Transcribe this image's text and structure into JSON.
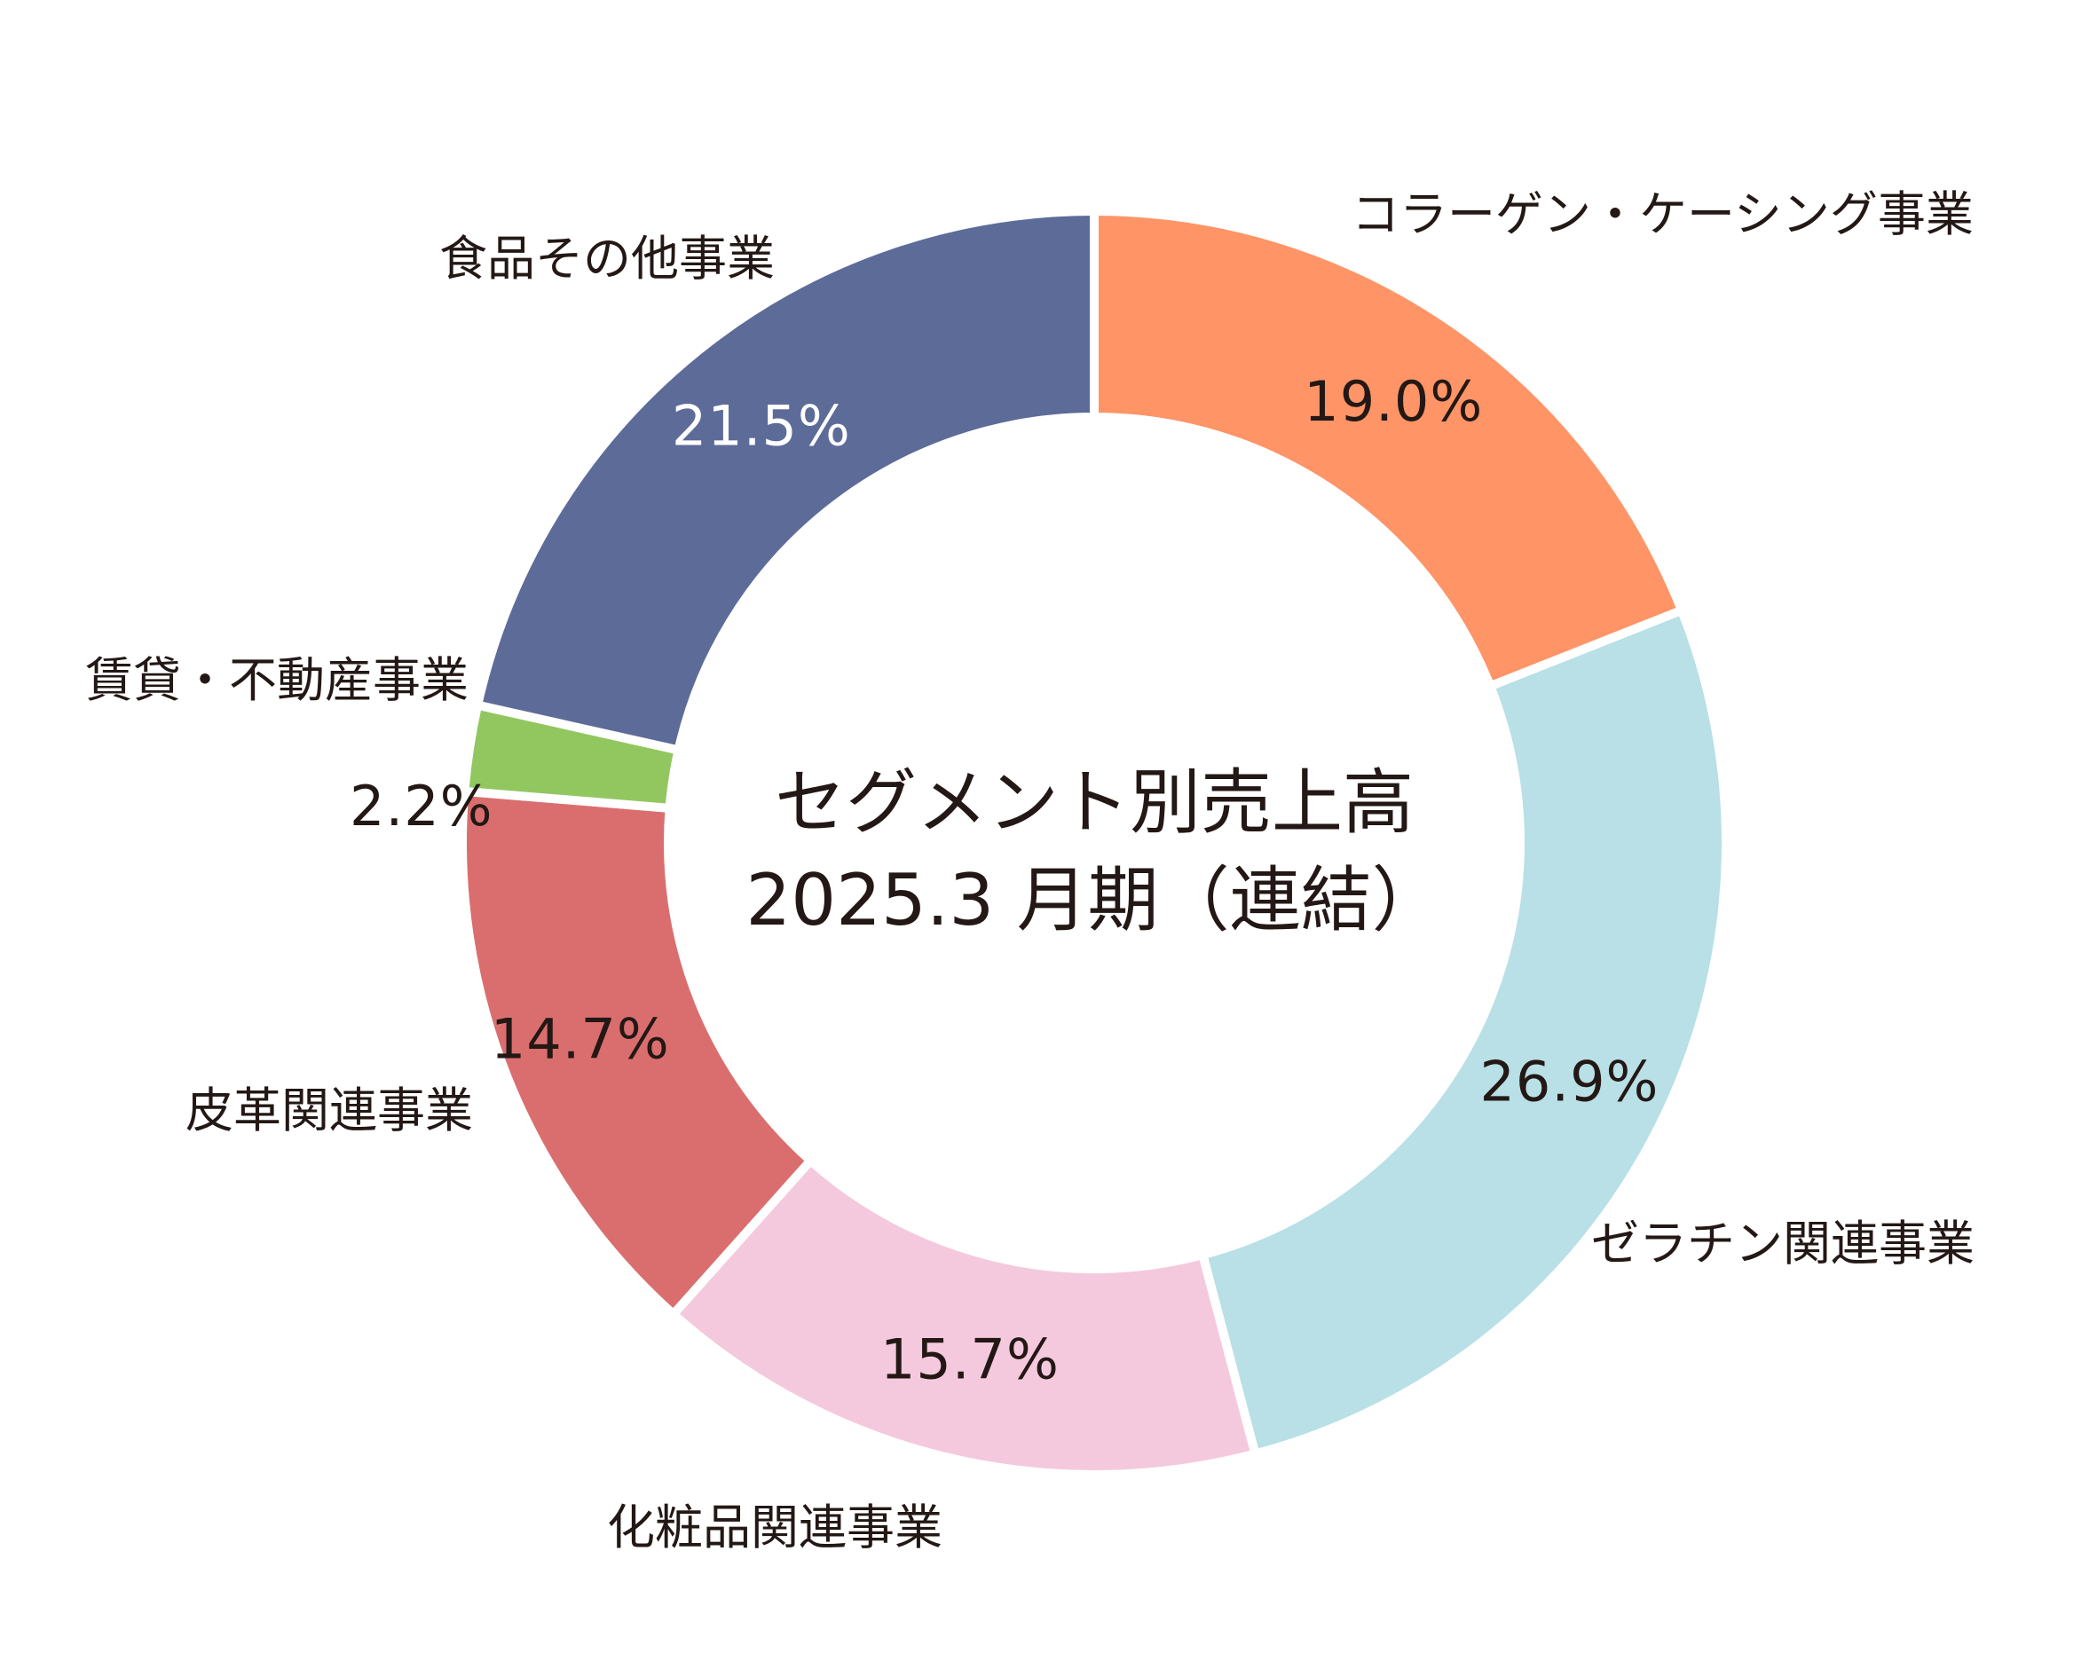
{
  "chart_data": {
    "type": "pie",
    "donut": true,
    "center_title": [
      "セグメント別売上高",
      "2025.3 月期（連結）"
    ],
    "slices": [
      {
        "name": "コラーゲン・ケーシング事業",
        "value": 19.0,
        "label": "19.0%",
        "color": "#FF9466",
        "label_color": "#231815"
      },
      {
        "name": "ゼラチン関連事業",
        "value": 26.9,
        "label": "26.9%",
        "color": "#B8E0E6",
        "label_color": "#231815"
      },
      {
        "name": "化粧品関連事業",
        "value": 15.7,
        "label": "15.7%",
        "color": "#F5C9DD",
        "label_color": "#231815"
      },
      {
        "name": "皮革関連事業",
        "value": 14.7,
        "label": "14.7%",
        "color": "#DA6E6E",
        "label_color": "#231815"
      },
      {
        "name": "賃貸・不動産事業",
        "value": 2.2,
        "label": "2.2%",
        "color": "#92C760",
        "label_color": "#231815"
      },
      {
        "name": "食品その他事業",
        "value": 21.5,
        "label": "21.5%",
        "color": "#5D6B98",
        "label_color": "#ffffff"
      }
    ],
    "start_angle": "12 o'clock",
    "direction": "clockwise"
  }
}
